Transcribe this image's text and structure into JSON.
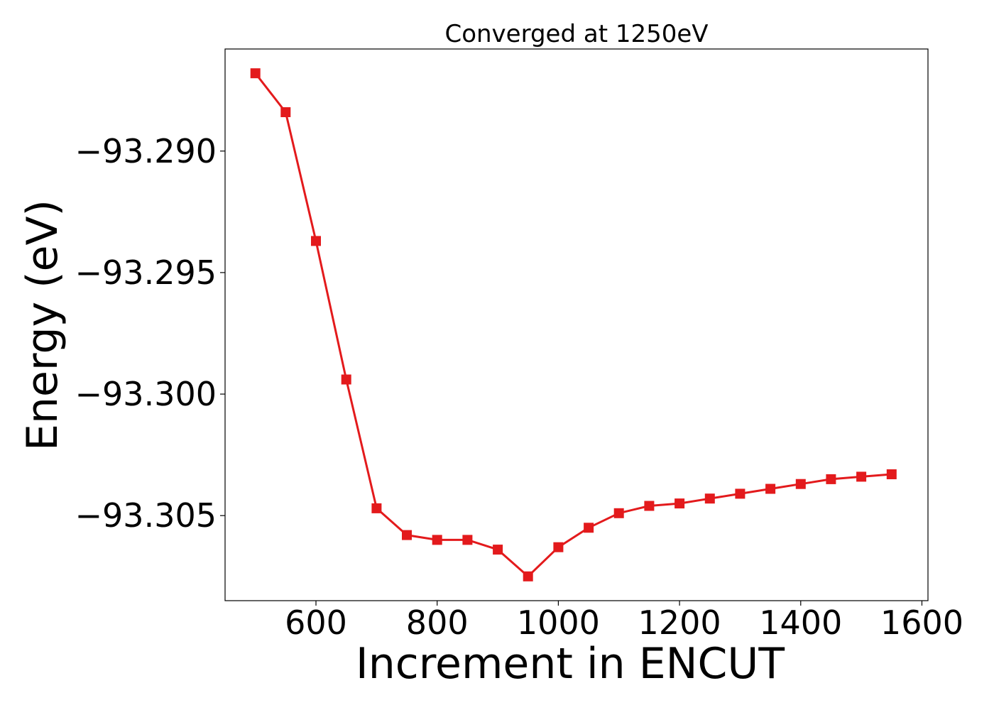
{
  "chart_data": {
    "type": "line",
    "title": "Converged at 1250eV",
    "xlabel": "Increment in ENCUT",
    "ylabel": "Energy (eV)",
    "xlim": [
      450,
      1610
    ],
    "ylim": [
      -93.3085,
      -93.2858
    ],
    "xticks": [
      600,
      800,
      1000,
      1200,
      1400,
      1600
    ],
    "xtick_labels": [
      "600",
      "800",
      "1000",
      "1200",
      "1400",
      "1600"
    ],
    "yticks": [
      -93.29,
      -93.295,
      -93.3,
      -93.305
    ],
    "ytick_labels": [
      "−93.290",
      "−93.295",
      "−93.300",
      "−93.305"
    ],
    "grid": false,
    "legend": false,
    "colors": {
      "series": "#e31a1c"
    },
    "series": [
      {
        "marker": "square",
        "x": [
          500,
          550,
          600,
          650,
          700,
          750,
          800,
          850,
          900,
          950,
          1000,
          1050,
          1100,
          1150,
          1200,
          1250,
          1300,
          1350,
          1400,
          1450,
          1500,
          1550
        ],
        "y": [
          -93.2868,
          -93.2884,
          -93.2937,
          -93.2994,
          -93.3047,
          -93.3058,
          -93.306,
          -93.306,
          -93.3064,
          -93.3075,
          -93.3063,
          -93.3055,
          -93.3049,
          -93.3046,
          -93.3045,
          -93.3043,
          -93.3041,
          -93.3039,
          -93.3037,
          -93.3035,
          -93.3034,
          -93.3033
        ]
      }
    ]
  }
}
